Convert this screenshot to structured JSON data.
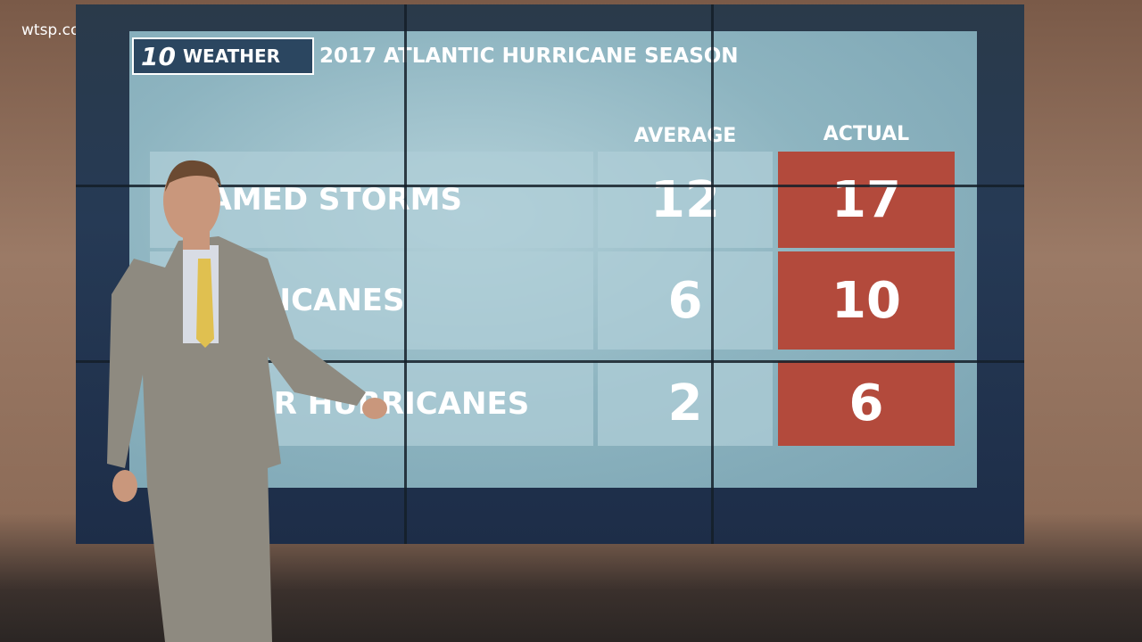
{
  "watermark": "wtsp.com",
  "header": {
    "logo": "10",
    "badge": "WEATHER",
    "title": "2017 ATLANTIC HURRICANE SEASON"
  },
  "table": {
    "columns": [
      "AVERAGE",
      "ACTUAL"
    ],
    "rows": [
      [
        "NAMED STORMS",
        12,
        17
      ],
      [
        "HURRICANES",
        6,
        10
      ],
      [
        "MAJOR HURRICANES",
        2,
        6
      ]
    ]
  }
}
